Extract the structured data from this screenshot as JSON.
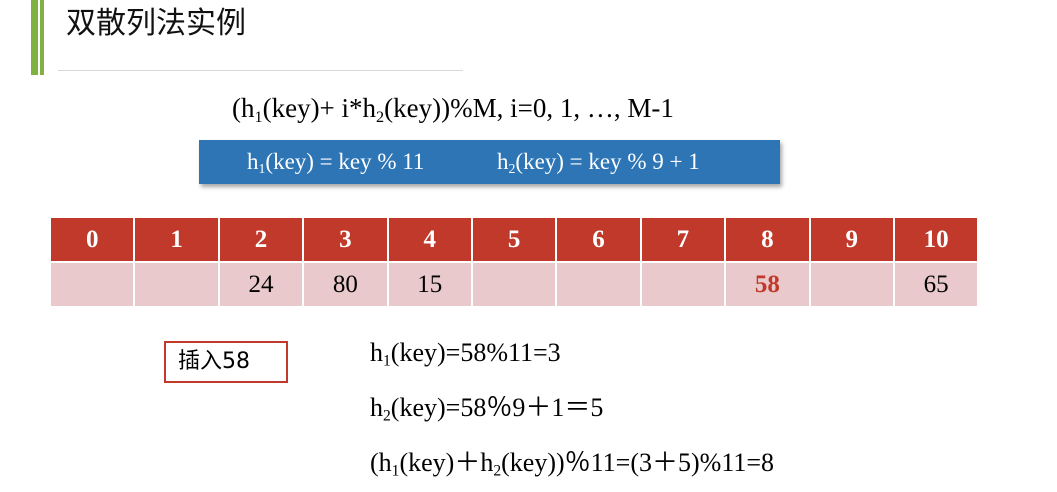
{
  "title": "双散列法实例",
  "formula": {
    "a": "(h",
    "a_sub": "1",
    "b": "(key)+ i*h",
    "b_sub": "2",
    "c": "(key))%M, i=0, 1, …, M-1"
  },
  "hash_functions": {
    "h1_prefix": "h",
    "h1_sub": "1",
    "h1_rest": "(key) = key % 11",
    "h2_prefix": "h",
    "h2_sub": "2",
    "h2_rest": "(key) = key % 9 + 1"
  },
  "table": {
    "indices": [
      "0",
      "1",
      "2",
      "3",
      "4",
      "5",
      "6",
      "7",
      "8",
      "9",
      "10"
    ],
    "values": [
      "",
      "",
      "24",
      "80",
      "15",
      "",
      "",
      "",
      "58",
      "",
      "65"
    ],
    "highlight_index": 8
  },
  "insert_label": "插入58",
  "calculations": {
    "line1": {
      "p": "h",
      "sub": "1",
      "rest": "(key)=58%11=3"
    },
    "line2": {
      "p": "h",
      "sub": "2",
      "rest": "(key)=58％9＋1＝5"
    },
    "line3": {
      "a": "(h",
      "a_sub": "1",
      "b": "(key)＋h",
      "b_sub": "2",
      "c": "(key))％11=(3＋5)%11=8"
    }
  },
  "colors": {
    "accent_green": "#7fb241",
    "function_box_blue": "#2e75b6",
    "header_red": "#c0392b",
    "cell_pink": "#e9c9cb"
  }
}
